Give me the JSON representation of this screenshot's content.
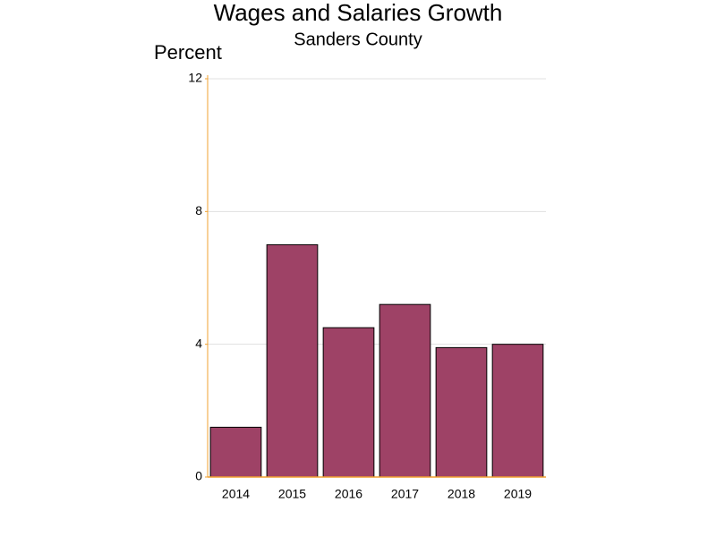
{
  "chart_data": {
    "type": "bar",
    "title": "Wages and Salaries Growth",
    "subtitle": "Sanders County",
    "y_label": "Percent",
    "categories": [
      "2014",
      "2015",
      "2016",
      "2017",
      "2018",
      "2019"
    ],
    "values": [
      1.5,
      7.0,
      4.5,
      5.2,
      3.9,
      4.0
    ],
    "color": "#9e4266",
    "ylim": [
      0,
      12
    ],
    "yticks": [
      0,
      4,
      8,
      12
    ],
    "grid": true
  }
}
